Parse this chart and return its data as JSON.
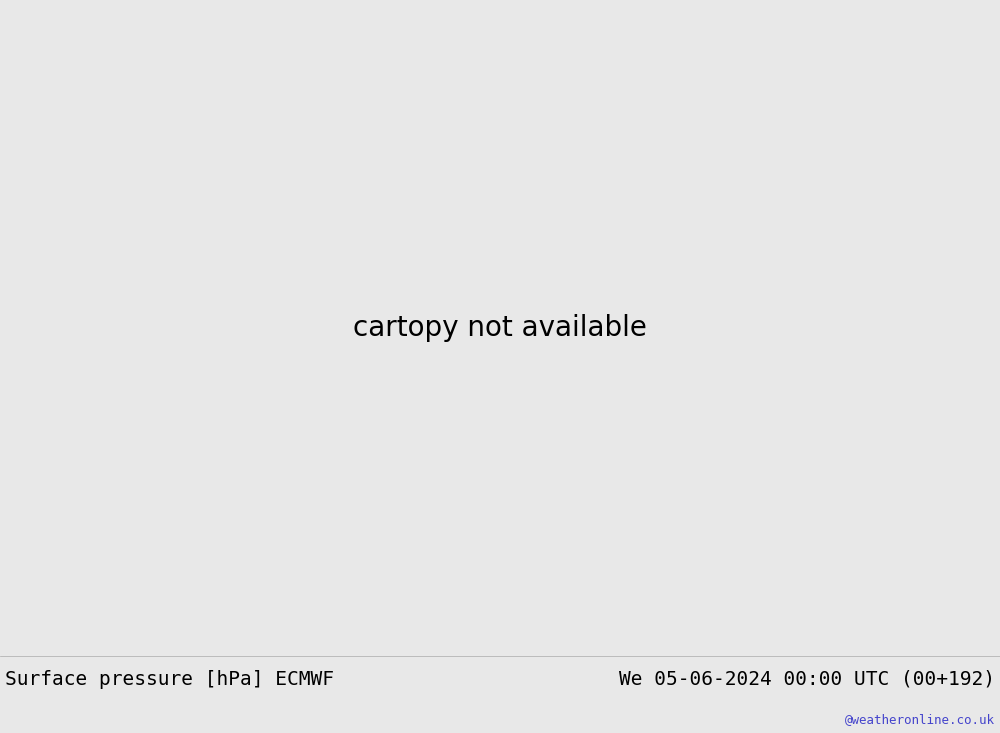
{
  "title_left": "Surface pressure [hPa] ECMWF",
  "title_right": "We 05-06-2024 00:00 UTC (00+192)",
  "watermark": "@weatheronline.co.uk",
  "watermark_color": "#4444cc",
  "footer_bg": "#e8e8e8",
  "title_fontsize": 14,
  "watermark_fontsize": 9,
  "map_bg_sea": "#d8d8d8",
  "map_bg_land": "#aad4a0",
  "map_bg_land_dark": "#90c088",
  "red_color": "#cc0000",
  "blue_color": "#0044cc",
  "black_color": "#000000",
  "gray_color": "#888888",
  "lon_min": -30,
  "lon_max": 65,
  "lat_min": 27,
  "lat_max": 73
}
